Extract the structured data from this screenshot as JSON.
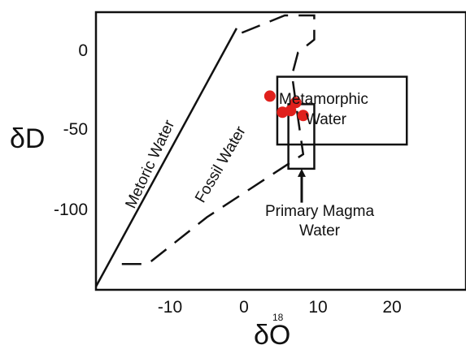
{
  "chart_data": {
    "type": "scatter",
    "xlabel": "δO",
    "xlabel_superscript": "18",
    "ylabel": "δD",
    "xlim": [
      -20,
      30
    ],
    "ylim": [
      -152,
      20
    ],
    "x_ticks": [
      -10,
      0,
      10,
      20
    ],
    "y_ticks": [
      0,
      -50,
      -100
    ],
    "grid": false,
    "points": [
      {
        "x": 3.5,
        "y": -32
      },
      {
        "x": 7.0,
        "y": -36
      },
      {
        "x": 5.2,
        "y": -42
      },
      {
        "x": 6.3,
        "y": -41
      },
      {
        "x": 8.0,
        "y": -44
      }
    ],
    "point_color": "#e0201c",
    "metoric_water_line": [
      [
        -20,
        -150
      ],
      [
        -1,
        10
      ]
    ],
    "fossil_water_outline": [
      [
        -16.5,
        -136
      ],
      [
        -13,
        -136
      ],
      [
        -5,
        -107
      ],
      [
        8,
        -68
      ],
      [
        7,
        -36
      ],
      [
        6.5,
        -19
      ],
      [
        7.3,
        -5
      ],
      [
        9.5,
        3
      ],
      [
        9.5,
        18
      ],
      [
        7.3,
        18
      ],
      [
        5.5,
        18
      ],
      [
        -1.5,
        5
      ]
    ],
    "metamorphic_water_box": {
      "x": [
        4.5,
        22
      ],
      "y": [
        -62,
        -20
      ]
    },
    "primary_magma_box": {
      "x": [
        6,
        9.5
      ],
      "y": [
        -77,
        -37
      ]
    },
    "labels": {
      "metoric": "Metoric Water",
      "fossil": "Fossil Water",
      "metamorphic_1": "Metamorphic",
      "metamorphic_2": "Water",
      "magma_1": "Primary Magma",
      "magma_2": "Water"
    },
    "magma_arrow": {
      "from": [
        7.8,
        -98
      ],
      "to": [
        7.8,
        -77
      ]
    }
  }
}
